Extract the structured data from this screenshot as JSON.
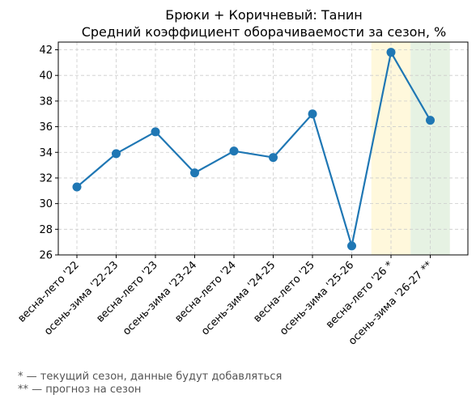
{
  "chart_data": {
    "type": "line",
    "title": "Брюки + Коричневый: Танин",
    "subtitle": "Средний коэффициент оборачиваемости за сезон, %",
    "categories": [
      "весна-лето '22",
      "осень-зима '22-23",
      "весна-лето '23",
      "осень-зима '23-24",
      "весна-лето '24",
      "осень-зима '24-25",
      "весна-лето '25",
      "осень-зима '25-26",
      "весна-лето '26 *",
      "осень-зима '26-27 **"
    ],
    "series": [
      {
        "values": [
          31.3,
          33.9,
          35.6,
          32.4,
          34.1,
          33.6,
          37.0,
          26.7,
          41.8,
          36.5
        ]
      }
    ],
    "ylim": [
      26,
      42.6
    ],
    "yticks": [
      26,
      28,
      30,
      32,
      34,
      36,
      38,
      40,
      42
    ],
    "grid": true,
    "highlights": [
      {
        "category": "весна-лето '26 *",
        "color": "#fff8dc"
      },
      {
        "category": "осень-зима '26-27 **",
        "color": "#e6f2e3"
      }
    ],
    "line_color": "#1f77b4",
    "footnotes": [
      "* — текущий сезон, данные будут добавляться",
      "** — прогноз на сезон"
    ]
  }
}
